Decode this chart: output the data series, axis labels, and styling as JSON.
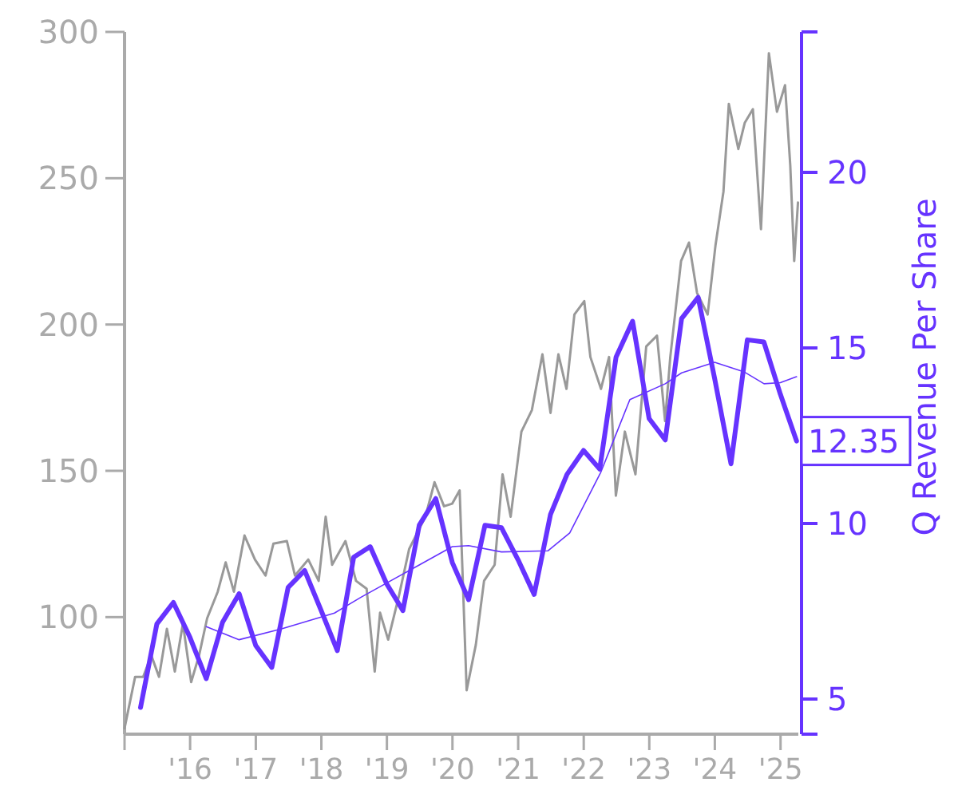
{
  "chart_data": {
    "type": "line",
    "y2label": "Q Revenue Per Share",
    "xlim": [
      "2015-01-01",
      "2025-04-10"
    ],
    "xticks": [
      {
        "value": "2015-01-01",
        "label": null
      },
      {
        "value": "2016-01-01",
        "label": "'16"
      },
      {
        "value": "2017-01-01",
        "label": "'17"
      },
      {
        "value": "2018-01-01",
        "label": "'18"
      },
      {
        "value": "2019-01-01",
        "label": "'19"
      },
      {
        "value": "2020-01-01",
        "label": "'20"
      },
      {
        "value": "2021-01-01",
        "label": "'21"
      },
      {
        "value": "2022-01-01",
        "label": "'22"
      },
      {
        "value": "2023-01-01",
        "label": "'23"
      },
      {
        "value": "2024-01-01",
        "label": "'24"
      },
      {
        "value": "2025-01-01",
        "label": "'25"
      }
    ],
    "ylim": [
      60,
      300
    ],
    "yticks": [
      100,
      150,
      200,
      250,
      300
    ],
    "y2lim": [
      4,
      24
    ],
    "y2ticks": [
      5,
      10,
      15,
      20
    ],
    "series": [
      {
        "color": "#999999",
        "x": [
          "2015-01-01",
          "2015-03-01",
          "2015-04-15",
          "2015-05-30",
          "2015-07-12",
          "2015-08-25",
          "2015-10-08",
          "2015-11-22",
          "2016-01-07",
          "2016-02-20",
          "2016-04-05",
          "2016-06-03",
          "2016-07-17",
          "2016-09-01",
          "2016-10-30",
          "2016-12-27",
          "2017-02-24",
          "2017-04-09",
          "2017-06-23",
          "2017-08-07",
          "2017-10-20",
          "2017-12-17",
          "2018-01-25",
          "2018-03-02",
          "2018-05-15",
          "2018-07-13",
          "2018-09-10",
          "2018-10-25",
          "2018-11-24",
          "2019-01-08",
          "2019-03-08",
          "2019-05-05",
          "2019-08-03",
          "2019-09-23",
          "2019-11-15",
          "2019-12-31",
          "2020-02-10",
          "2020-03-20",
          "2020-05-10",
          "2020-06-25",
          "2020-08-23",
          "2020-10-06",
          "2020-11-20",
          "2021-01-19",
          "2021-03-18",
          "2021-05-16",
          "2021-06-30",
          "2021-08-13",
          "2021-09-27",
          "2021-11-10",
          "2022-01-04",
          "2022-02-07",
          "2022-04-07",
          "2022-05-22",
          "2022-06-29",
          "2022-08-18",
          "2022-10-16",
          "2022-12-15",
          "2023-02-13",
          "2023-03-30",
          "2023-04-28",
          "2023-06-27",
          "2023-08-10",
          "2023-09-24",
          "2023-11-22",
          "2024-01-05",
          "2024-02-18",
          "2024-03-19",
          "2024-05-11",
          "2024-06-16",
          "2024-07-31",
          "2024-09-14",
          "2024-10-28",
          "2024-12-12",
          "2025-01-26",
          "2025-02-24",
          "2025-03-18",
          "2025-04-08"
        ],
        "values": [
          62,
          79.6,
          79.6,
          86.9,
          79.6,
          96,
          81.4,
          97.8,
          77.8,
          86.9,
          99.6,
          108.7,
          118.7,
          108.7,
          127.9,
          119.7,
          114.2,
          125.1,
          126,
          114.2,
          119.7,
          112.4,
          134.3,
          117.9,
          126,
          112.4,
          109.7,
          81.4,
          101.5,
          92.3,
          107,
          123.3,
          134.3,
          146.1,
          137.9,
          138.8,
          143.3,
          75,
          90.5,
          112.4,
          117.9,
          148.8,
          134.3,
          163.4,
          170.7,
          189.8,
          169.8,
          189.8,
          178,
          203.4,
          208,
          188.9,
          178,
          188.9,
          141.5,
          163.4,
          148.8,
          192.5,
          196.2,
          167,
          188.9,
          221.7,
          228,
          210.8,
          203.4,
          227.2,
          245.4,
          275.4,
          260,
          269,
          273.6,
          232.6,
          292.7,
          272.7,
          281.8,
          254.5,
          221.7,
          241.7
        ]
      },
      {
        "color": "#6633ff",
        "axis": "y2",
        "x": [
          "2015-03-31",
          "2015-06-30",
          "2015-09-30",
          "2015-12-31",
          "2016-03-31",
          "2016-06-30",
          "2016-09-30",
          "2016-12-31",
          "2017-03-31",
          "2017-06-30",
          "2017-09-30",
          "2017-12-31",
          "2018-03-31",
          "2018-06-30",
          "2018-09-30",
          "2018-12-31",
          "2019-03-31",
          "2019-06-30",
          "2019-09-30",
          "2019-12-31",
          "2020-03-31",
          "2020-06-30",
          "2020-09-30",
          "2020-12-31",
          "2021-03-31",
          "2021-06-30",
          "2021-09-30",
          "2021-12-31",
          "2022-03-31",
          "2022-06-30",
          "2022-09-30",
          "2022-12-31",
          "2023-03-31",
          "2023-06-30",
          "2023-09-30",
          "2023-12-31",
          "2024-03-31",
          "2024-06-30",
          "2024-09-30",
          "2024-12-31",
          "2025-03-31"
        ],
        "values": [
          4.76,
          7.14,
          7.75,
          6.76,
          5.58,
          7.19,
          8.0,
          6.53,
          5.9,
          8.18,
          8.66,
          7.52,
          6.38,
          9.04,
          9.34,
          8.28,
          7.52,
          9.95,
          10.71,
          8.89,
          7.83,
          9.95,
          9.88,
          8.97,
          7.98,
          10.26,
          11.4,
          12.08,
          11.55,
          14.74,
          15.76,
          12.99,
          12.38,
          15.84,
          16.44,
          14.13,
          11.7,
          15.23,
          15.17,
          13.68,
          12.35
        ],
        "value_labels": [
          null,
          null,
          null,
          null,
          null,
          null,
          null,
          null,
          null,
          null,
          null,
          null,
          null,
          null,
          null,
          null,
          null,
          null,
          null,
          null,
          null,
          null,
          null,
          null,
          null,
          null,
          null,
          null,
          null,
          null,
          null,
          null,
          null,
          null,
          null,
          null,
          null,
          null,
          null,
          null,
          "12.35"
        ]
      },
      {
        "color": "#6633ff",
        "axis": "y2",
        "x": [
          "2016-03-31",
          "2016-09-30",
          "2017-05-25",
          "2018-03-15",
          "2018-08-10",
          "2019-05-05",
          "2019-12-31",
          "2020-03-31",
          "2020-09-30",
          "2021-06-15",
          "2021-10-15",
          "2022-04-07",
          "2022-09-15",
          "2023-03-31",
          "2023-06-30",
          "2023-12-31",
          "2024-06-15",
          "2024-10-01",
          "2024-12-31",
          "2025-03-31"
        ],
        "values": [
          7.06,
          6.69,
          7.0,
          7.45,
          7.9,
          8.66,
          9.34,
          9.37,
          9.19,
          9.22,
          9.73,
          11.47,
          13.53,
          13.98,
          14.29,
          14.59,
          14.31,
          13.98,
          14.01,
          14.18
        ]
      }
    ]
  }
}
